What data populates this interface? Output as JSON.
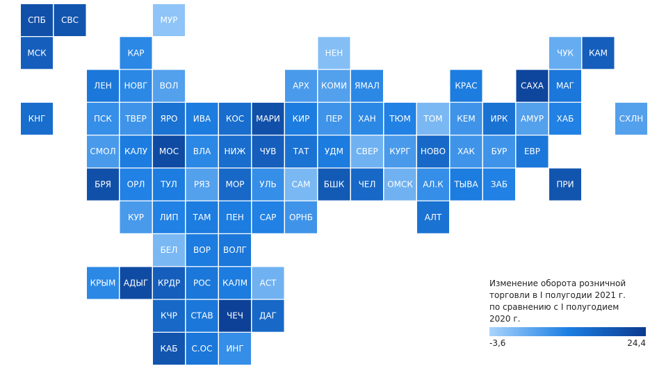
{
  "legend": {
    "title": [
      "Изменение оборота розничной",
      "торговли в I полугодии 2021 г.",
      "по сравнению с I полугодием",
      "2020 г."
    ],
    "range": [
      {
        "value": -3.6,
        "label": "-3,6"
      },
      {
        "value": 24.4,
        "label": "24,4"
      }
    ]
  },
  "tiles": [
    {
      "label": "СПБ",
      "value": 20
    },
    {
      "label": "СВС",
      "value": 19
    },
    {
      "label": "МУР",
      "value": -1
    },
    {
      "label": "МСК",
      "value": 17
    },
    {
      "label": "КАР",
      "value": 9
    },
    {
      "label": "НЕН",
      "value": 0
    },
    {
      "label": "ЧУК",
      "value": 3
    },
    {
      "label": "КАМ",
      "value": 17
    },
    {
      "label": "ЛЕН",
      "value": 12
    },
    {
      "label": "НОВГ",
      "value": 9
    },
    {
      "label": "ВОЛ",
      "value": 5
    },
    {
      "label": "АРХ",
      "value": 6
    },
    {
      "label": "КОМИ",
      "value": 5
    },
    {
      "label": "ЯМАЛ",
      "value": 9
    },
    {
      "label": "КРАС",
      "value": 11
    },
    {
      "label": "САХА",
      "value": 22
    },
    {
      "label": "МАГ",
      "value": 12
    },
    {
      "label": "КНГ",
      "value": 14
    },
    {
      "label": "ПСК",
      "value": 8
    },
    {
      "label": "ТВЕР",
      "value": 7
    },
    {
      "label": "ЯРО",
      "value": 13
    },
    {
      "label": "ИВА",
      "value": 11
    },
    {
      "label": "КОС",
      "value": 14
    },
    {
      "label": "МАРИ",
      "value": 20
    },
    {
      "label": "КИР",
      "value": 11
    },
    {
      "label": "ПЕР",
      "value": 7
    },
    {
      "label": "ХАН",
      "value": 9
    },
    {
      "label": "ТЮМ",
      "value": 10
    },
    {
      "label": "ТОМ",
      "value": 1
    },
    {
      "label": "КЕМ",
      "value": 7
    },
    {
      "label": "ИРК",
      "value": 13
    },
    {
      "label": "АМУР",
      "value": 5
    },
    {
      "label": "ХАБ",
      "value": 10
    },
    {
      "label": "СХЛН",
      "value": 5
    },
    {
      "label": "СМОЛ",
      "value": 6
    },
    {
      "label": "КАЛУ",
      "value": 11
    },
    {
      "label": "МОС",
      "value": 21
    },
    {
      "label": "ВЛА",
      "value": 9
    },
    {
      "label": "НИЖ",
      "value": 14
    },
    {
      "label": "ЧУВ",
      "value": 17
    },
    {
      "label": "ТАТ",
      "value": 13
    },
    {
      "label": "УДМ",
      "value": 11
    },
    {
      "label": "СВЕР",
      "value": 2
    },
    {
      "label": "КУРГ",
      "value": 6
    },
    {
      "label": "НОВО",
      "value": 15
    },
    {
      "label": "ХАК",
      "value": 7
    },
    {
      "label": "БУР",
      "value": 7
    },
    {
      "label": "ЕВР",
      "value": 12
    },
    {
      "label": "БРЯ",
      "value": 20
    },
    {
      "label": "ОРЛ",
      "value": 10
    },
    {
      "label": "ТУЛ",
      "value": 11
    },
    {
      "label": "РЯЗ",
      "value": 5
    },
    {
      "label": "МОР",
      "value": 15
    },
    {
      "label": "УЛЬ",
      "value": 8
    },
    {
      "label": "САМ",
      "value": 1
    },
    {
      "label": "БШК",
      "value": 18
    },
    {
      "label": "ЧЕЛ",
      "value": 15
    },
    {
      "label": "ОМСК",
      "value": 2
    },
    {
      "label": "АЛ.К",
      "value": 8
    },
    {
      "label": "ТЫВА",
      "value": 11
    },
    {
      "label": "ЗАБ",
      "value": 10
    },
    {
      "label": "ПРИ",
      "value": 19
    },
    {
      "label": "КУР",
      "value": 6
    },
    {
      "label": "ЛИП",
      "value": 10
    },
    {
      "label": "ТАМ",
      "value": 11
    },
    {
      "label": "ПЕН",
      "value": 11
    },
    {
      "label": "САР",
      "value": 10
    },
    {
      "label": "ОРНБ",
      "value": 7
    },
    {
      "label": "АЛТ",
      "value": 13
    },
    {
      "label": "БЕЛ",
      "value": 1
    },
    {
      "label": "ВОР",
      "value": 11
    },
    {
      "label": "ВОЛГ",
      "value": 12
    },
    {
      "label": "КРЫМ",
      "value": 9
    },
    {
      "label": "АДЫГ",
      "value": 21
    },
    {
      "label": "КРДР",
      "value": 17
    },
    {
      "label": "РОС",
      "value": 12
    },
    {
      "label": "КАЛМ",
      "value": 11
    },
    {
      "label": "АСТ",
      "value": 2
    },
    {
      "label": "КЧР",
      "value": 15
    },
    {
      "label": "СТАВ",
      "value": 12
    },
    {
      "label": "ЧЕЧ",
      "value": 23
    },
    {
      "label": "ДАГ",
      "value": 15
    },
    {
      "label": "КАБ",
      "value": 19
    },
    {
      "label": "С.ОС",
      "value": 12
    },
    {
      "label": "ИНГ",
      "value": 8
    }
  ]
}
